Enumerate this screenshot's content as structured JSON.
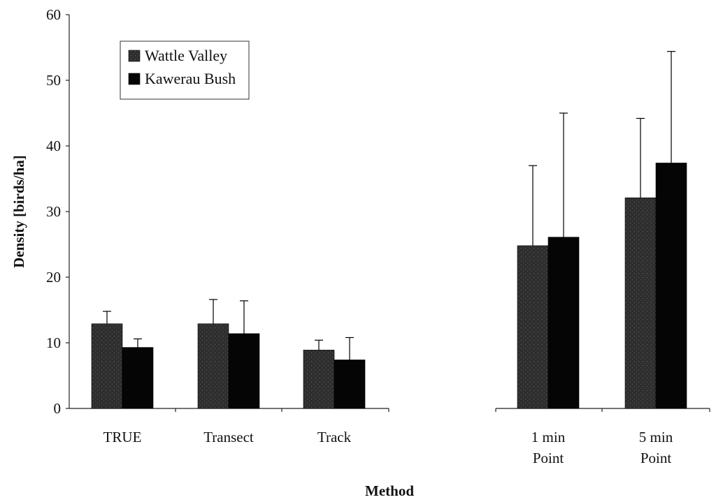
{
  "chart_data": {
    "type": "bar",
    "title": "",
    "xlabel": "Method",
    "ylabel": "Density [birds/ha]",
    "ylim": [
      0,
      60
    ],
    "yticks": [
      0,
      10,
      20,
      30,
      40,
      50,
      60
    ],
    "groups": [
      {
        "id": "true",
        "lines": [
          "TRUE"
        ],
        "panel": "left"
      },
      {
        "id": "transect",
        "lines": [
          "Transect"
        ],
        "panel": "left"
      },
      {
        "id": "track",
        "lines": [
          "Track"
        ],
        "panel": "left"
      },
      {
        "id": "1min",
        "lines": [
          "1 min",
          "Point"
        ],
        "panel": "right"
      },
      {
        "id": "5min",
        "lines": [
          "5 min",
          "Point"
        ],
        "panel": "right"
      }
    ],
    "series": [
      {
        "name": "Wattle Valley",
        "color": "#2e2e2e",
        "pattern": "stippled",
        "values": [
          12.9,
          12.9,
          8.9,
          24.8,
          32.1
        ],
        "error_upper": [
          14.8,
          16.6,
          10.4,
          37.0,
          44.2
        ]
      },
      {
        "name": "Kawerau Bush",
        "color": "#050505",
        "pattern": "solid",
        "values": [
          9.3,
          11.4,
          7.4,
          26.1,
          37.4
        ],
        "error_upper": [
          10.6,
          16.4,
          10.8,
          45.0,
          54.4
        ]
      }
    ],
    "legend_position": "top-left",
    "grid": false
  }
}
